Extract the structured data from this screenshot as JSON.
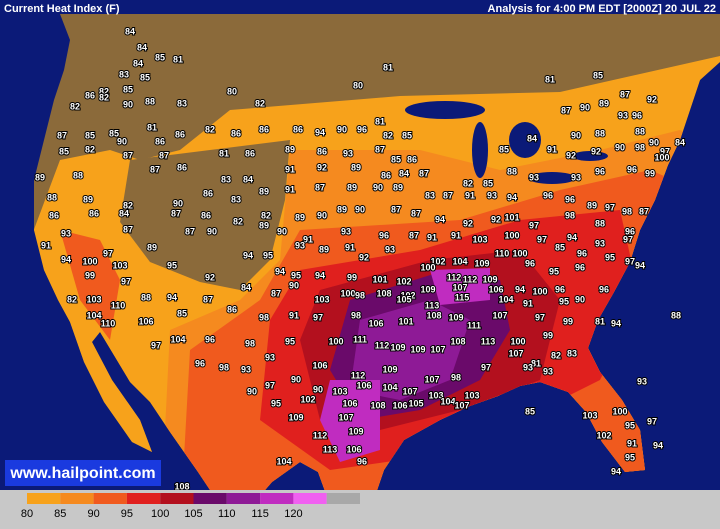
{
  "header": {
    "title": "Current Heat Index (F)",
    "analysis": "Analysis for 4:00 PM EDT [2000Z] 20 JUL 22"
  },
  "watermark": "www.hailpoint.com",
  "readings": [
    84,
    84,
    85,
    81,
    84,
    83,
    85,
    82,
    86,
    85,
    82,
    82,
    90,
    88,
    83,
    80,
    82,
    80,
    81,
    81,
    85,
    87,
    92,
    87,
    90,
    89,
    93,
    96,
    87,
    85,
    85,
    81,
    86,
    82,
    86,
    86,
    86,
    94,
    90,
    96,
    81,
    82,
    85,
    84,
    90,
    88,
    88,
    90,
    84,
    97,
    85,
    82,
    90,
    87,
    86,
    87,
    81,
    86,
    89,
    86,
    93,
    87,
    85,
    86,
    85,
    91,
    92,
    92,
    90,
    98,
    100,
    89,
    88,
    87,
    86,
    83,
    84,
    91,
    92,
    89,
    86,
    84,
    87,
    82,
    85,
    88,
    93,
    93,
    96,
    96,
    99,
    88,
    89,
    82,
    90,
    86,
    83,
    89,
    91,
    87,
    89,
    90,
    89,
    83,
    87,
    91,
    93,
    94,
    96,
    96,
    89,
    97,
    98,
    87,
    86,
    86,
    84,
    87,
    86,
    82,
    82,
    89,
    90,
    89,
    90,
    87,
    87,
    94,
    92,
    92,
    101,
    97,
    98,
    88,
    96,
    93,
    87,
    90,
    89,
    90,
    91,
    93,
    96,
    87,
    91,
    91,
    103,
    100,
    97,
    94,
    93,
    97,
    91,
    97,
    89,
    87,
    94,
    95,
    93,
    89,
    91,
    92,
    93,
    102,
    104,
    109,
    110,
    100,
    85,
    96,
    95,
    97,
    94,
    100,
    103,
    95,
    94,
    95,
    94,
    99,
    101,
    102,
    100,
    112,
    112,
    109,
    96,
    95,
    96,
    94,
    99,
    97,
    92,
    84,
    87,
    90,
    100,
    108,
    102,
    109,
    107,
    106,
    94,
    100,
    96,
    96,
    82,
    103,
    110,
    88,
    94,
    87,
    103,
    98,
    105,
    113,
    115,
    104,
    91,
    95,
    90,
    88,
    104,
    110,
    106,
    85,
    86,
    98,
    91,
    97,
    98,
    106,
    101,
    108,
    109,
    111,
    107,
    97,
    99,
    81,
    94,
    97,
    104,
    96,
    98,
    95,
    100,
    111,
    112,
    109,
    109,
    107,
    108,
    113,
    100,
    99,
    82,
    83,
    107,
    81,
    96,
    98,
    93,
    93,
    106,
    112,
    109,
    107,
    98,
    97,
    93,
    93,
    97,
    90,
    90,
    90,
    103,
    106,
    104,
    107,
    103,
    103,
    93,
    95,
    102,
    106,
    108,
    106,
    105,
    104,
    107,
    109,
    107,
    85,
    103,
    100,
    97,
    95,
    112,
    109,
    102,
    91,
    94,
    113,
    106,
    95,
    104,
    96,
    94,
    102,
    108
  ],
  "legend": {
    "ticks": [
      80,
      85,
      90,
      95,
      100,
      105,
      110,
      115,
      120
    ],
    "colors": [
      "#f7a21b",
      "#f58a1f",
      "#f05a1e",
      "#e0201e",
      "#b3101e",
      "#6a0a6a",
      "#8e1a96",
      "#c02cc0",
      "#f060f0",
      "#a8a8a8"
    ]
  }
}
